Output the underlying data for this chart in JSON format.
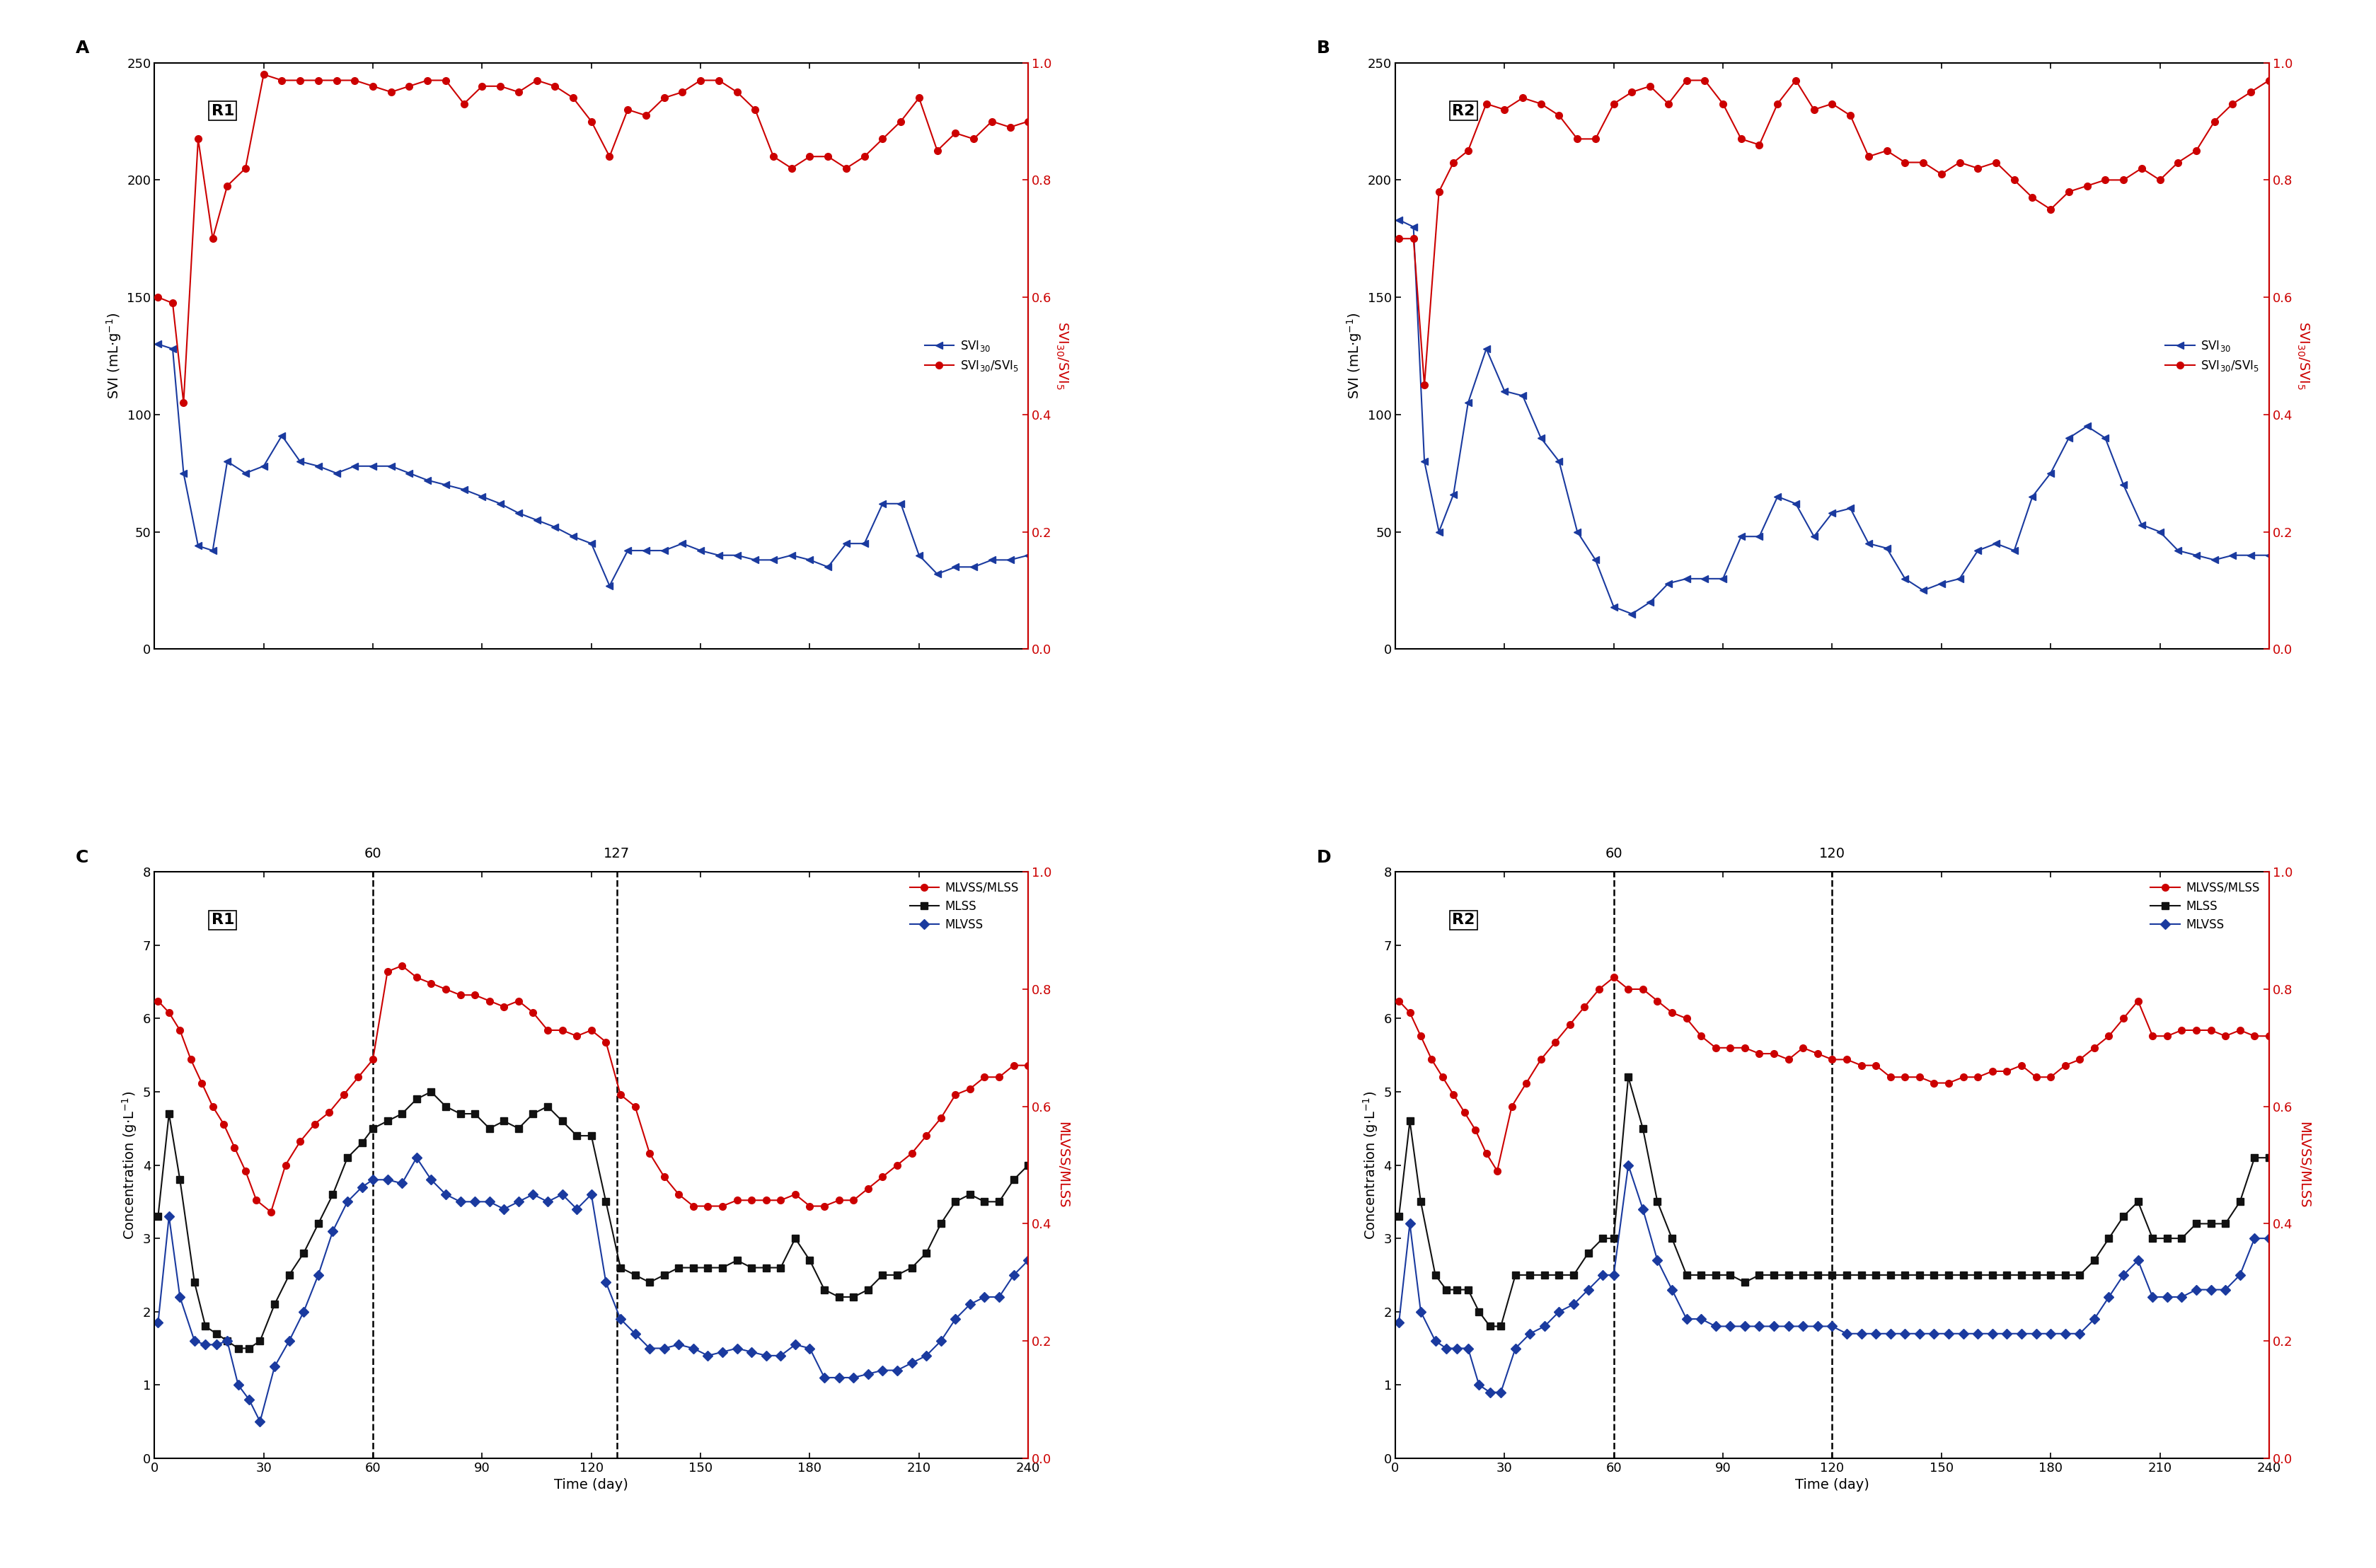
{
  "panel_A": {
    "label": "A",
    "reactor": "R1",
    "svi30_x": [
      1,
      5,
      8,
      12,
      16,
      20,
      25,
      30,
      35,
      40,
      45,
      50,
      55,
      60,
      65,
      70,
      75,
      80,
      85,
      90,
      95,
      100,
      105,
      110,
      115,
      120,
      125,
      130,
      135,
      140,
      145,
      150,
      155,
      160,
      165,
      170,
      175,
      180,
      185,
      190,
      195,
      200,
      205,
      210,
      215,
      220,
      225,
      230,
      235,
      240
    ],
    "svi30_y": [
      130,
      128,
      75,
      44,
      42,
      80,
      75,
      78,
      91,
      80,
      78,
      75,
      78,
      78,
      78,
      75,
      72,
      70,
      68,
      65,
      62,
      58,
      55,
      52,
      48,
      45,
      27,
      42,
      42,
      42,
      45,
      42,
      40,
      40,
      38,
      38,
      40,
      38,
      35,
      45,
      45,
      62,
      62,
      40,
      32,
      35,
      35,
      38,
      38,
      40
    ],
    "ratio_x": [
      1,
      5,
      8,
      12,
      16,
      20,
      25,
      30,
      35,
      40,
      45,
      50,
      55,
      60,
      65,
      70,
      75,
      80,
      85,
      90,
      95,
      100,
      105,
      110,
      115,
      120,
      125,
      130,
      135,
      140,
      145,
      150,
      155,
      160,
      165,
      170,
      175,
      180,
      185,
      190,
      195,
      200,
      205,
      210,
      215,
      220,
      225,
      230,
      235,
      240
    ],
    "ratio_y": [
      0.6,
      0.59,
      0.42,
      0.87,
      0.7,
      0.79,
      0.82,
      0.98,
      0.97,
      0.97,
      0.97,
      0.97,
      0.97,
      0.96,
      0.95,
      0.96,
      0.97,
      0.97,
      0.93,
      0.96,
      0.96,
      0.95,
      0.97,
      0.96,
      0.94,
      0.9,
      0.84,
      0.92,
      0.91,
      0.94,
      0.95,
      0.97,
      0.97,
      0.95,
      0.92,
      0.84,
      0.82,
      0.84,
      0.84,
      0.82,
      0.84,
      0.87,
      0.9,
      0.94,
      0.85,
      0.88,
      0.87,
      0.9,
      0.89,
      0.9
    ]
  },
  "panel_B": {
    "label": "B",
    "reactor": "R2",
    "svi30_x": [
      1,
      5,
      8,
      12,
      16,
      20,
      25,
      30,
      35,
      40,
      45,
      50,
      55,
      60,
      65,
      70,
      75,
      80,
      85,
      90,
      95,
      100,
      105,
      110,
      115,
      120,
      125,
      130,
      135,
      140,
      145,
      150,
      155,
      160,
      165,
      170,
      175,
      180,
      185,
      190,
      195,
      200,
      205,
      210,
      215,
      220,
      225,
      230,
      235,
      240
    ],
    "svi30_y": [
      183,
      180,
      80,
      50,
      66,
      105,
      128,
      110,
      108,
      90,
      80,
      50,
      38,
      18,
      15,
      20,
      28,
      30,
      30,
      30,
      48,
      48,
      65,
      62,
      48,
      58,
      60,
      45,
      43,
      30,
      25,
      28,
      30,
      42,
      45,
      42,
      65,
      75,
      90,
      95,
      90,
      70,
      53,
      50,
      42,
      40,
      38,
      40,
      40,
      40
    ],
    "ratio_x": [
      1,
      5,
      8,
      12,
      16,
      20,
      25,
      30,
      35,
      40,
      45,
      50,
      55,
      60,
      65,
      70,
      75,
      80,
      85,
      90,
      95,
      100,
      105,
      110,
      115,
      120,
      125,
      130,
      135,
      140,
      145,
      150,
      155,
      160,
      165,
      170,
      175,
      180,
      185,
      190,
      195,
      200,
      205,
      210,
      215,
      220,
      225,
      230,
      235,
      240
    ],
    "ratio_y": [
      0.7,
      0.7,
      0.45,
      0.78,
      0.83,
      0.85,
      0.93,
      0.92,
      0.94,
      0.93,
      0.91,
      0.87,
      0.87,
      0.93,
      0.95,
      0.96,
      0.93,
      0.97,
      0.97,
      0.93,
      0.87,
      0.86,
      0.93,
      0.97,
      0.92,
      0.93,
      0.91,
      0.84,
      0.85,
      0.83,
      0.83,
      0.81,
      0.83,
      0.82,
      0.83,
      0.8,
      0.77,
      0.75,
      0.78,
      0.79,
      0.8,
      0.8,
      0.82,
      0.8,
      0.83,
      0.85,
      0.9,
      0.93,
      0.95,
      0.97
    ]
  },
  "panel_C": {
    "label": "C",
    "reactor": "R1",
    "mlvss_mlss_x": [
      1,
      4,
      7,
      10,
      13,
      16,
      19,
      22,
      25,
      28,
      32,
      36,
      40,
      44,
      48,
      52,
      56,
      60,
      64,
      68,
      72,
      76,
      80,
      84,
      88,
      92,
      96,
      100,
      104,
      108,
      112,
      116,
      120,
      124,
      128,
      132,
      136,
      140,
      144,
      148,
      152,
      156,
      160,
      164,
      168,
      172,
      176,
      180,
      184,
      188,
      192,
      196,
      200,
      204,
      208,
      212,
      216,
      220,
      224,
      228,
      232,
      236,
      240
    ],
    "mlvss_mlss_y": [
      0.78,
      0.76,
      0.73,
      0.68,
      0.64,
      0.6,
      0.57,
      0.53,
      0.49,
      0.44,
      0.42,
      0.5,
      0.54,
      0.57,
      0.59,
      0.62,
      0.65,
      0.68,
      0.83,
      0.84,
      0.82,
      0.81,
      0.8,
      0.79,
      0.79,
      0.78,
      0.77,
      0.78,
      0.76,
      0.73,
      0.73,
      0.72,
      0.73,
      0.71,
      0.62,
      0.6,
      0.52,
      0.48,
      0.45,
      0.43,
      0.43,
      0.43,
      0.44,
      0.44,
      0.44,
      0.44,
      0.45,
      0.43,
      0.43,
      0.44,
      0.44,
      0.46,
      0.48,
      0.5,
      0.52,
      0.55,
      0.58,
      0.62,
      0.63,
      0.65,
      0.65,
      0.67,
      0.67
    ],
    "mlss_x": [
      1,
      4,
      7,
      11,
      14,
      17,
      20,
      23,
      26,
      29,
      33,
      37,
      41,
      45,
      49,
      53,
      57,
      60,
      64,
      68,
      72,
      76,
      80,
      84,
      88,
      92,
      96,
      100,
      104,
      108,
      112,
      116,
      120,
      124,
      128,
      132,
      136,
      140,
      144,
      148,
      152,
      156,
      160,
      164,
      168,
      172,
      176,
      180,
      184,
      188,
      192,
      196,
      200,
      204,
      208,
      212,
      216,
      220,
      224,
      228,
      232,
      236,
      240
    ],
    "mlss_y": [
      3.3,
      4.7,
      3.8,
      2.4,
      1.8,
      1.7,
      1.6,
      1.5,
      1.5,
      1.6,
      2.1,
      2.5,
      2.8,
      3.2,
      3.6,
      4.1,
      4.3,
      4.5,
      4.6,
      4.7,
      4.9,
      5.0,
      4.8,
      4.7,
      4.7,
      4.5,
      4.6,
      4.5,
      4.7,
      4.8,
      4.6,
      4.4,
      4.4,
      3.5,
      2.6,
      2.5,
      2.4,
      2.5,
      2.6,
      2.6,
      2.6,
      2.6,
      2.7,
      2.6,
      2.6,
      2.6,
      3.0,
      2.7,
      2.3,
      2.2,
      2.2,
      2.3,
      2.5,
      2.5,
      2.6,
      2.8,
      3.2,
      3.5,
      3.6,
      3.5,
      3.5,
      3.8,
      4.0
    ],
    "mlvss_x": [
      1,
      4,
      7,
      11,
      14,
      17,
      20,
      23,
      26,
      29,
      33,
      37,
      41,
      45,
      49,
      53,
      57,
      60,
      64,
      68,
      72,
      76,
      80,
      84,
      88,
      92,
      96,
      100,
      104,
      108,
      112,
      116,
      120,
      124,
      128,
      132,
      136,
      140,
      144,
      148,
      152,
      156,
      160,
      164,
      168,
      172,
      176,
      180,
      184,
      188,
      192,
      196,
      200,
      204,
      208,
      212,
      216,
      220,
      224,
      228,
      232,
      236,
      240
    ],
    "mlvss_y": [
      1.85,
      3.3,
      2.2,
      1.6,
      1.55,
      1.55,
      1.6,
      1.0,
      0.8,
      0.5,
      1.25,
      1.6,
      2.0,
      2.5,
      3.1,
      3.5,
      3.7,
      3.8,
      3.8,
      3.75,
      4.1,
      3.8,
      3.6,
      3.5,
      3.5,
      3.5,
      3.4,
      3.5,
      3.6,
      3.5,
      3.6,
      3.4,
      3.6,
      2.4,
      1.9,
      1.7,
      1.5,
      1.5,
      1.55,
      1.5,
      1.4,
      1.45,
      1.5,
      1.45,
      1.4,
      1.4,
      1.55,
      1.5,
      1.1,
      1.1,
      1.1,
      1.15,
      1.2,
      1.2,
      1.3,
      1.4,
      1.6,
      1.9,
      2.1,
      2.2,
      2.2,
      2.5,
      2.7
    ],
    "vline1": 60,
    "vline2": 127,
    "vline1_label": "60",
    "vline2_label": "127"
  },
  "panel_D": {
    "label": "D",
    "reactor": "R2",
    "mlvss_mlss_x": [
      1,
      4,
      7,
      10,
      13,
      16,
      19,
      22,
      25,
      28,
      32,
      36,
      40,
      44,
      48,
      52,
      56,
      60,
      64,
      68,
      72,
      76,
      80,
      84,
      88,
      92,
      96,
      100,
      104,
      108,
      112,
      116,
      120,
      124,
      128,
      132,
      136,
      140,
      144,
      148,
      152,
      156,
      160,
      164,
      168,
      172,
      176,
      180,
      184,
      188,
      192,
      196,
      200,
      204,
      208,
      212,
      216,
      220,
      224,
      228,
      232,
      236,
      240
    ],
    "mlvss_mlss_y": [
      0.78,
      0.76,
      0.72,
      0.68,
      0.65,
      0.62,
      0.59,
      0.56,
      0.52,
      0.49,
      0.6,
      0.64,
      0.68,
      0.71,
      0.74,
      0.77,
      0.8,
      0.82,
      0.8,
      0.8,
      0.78,
      0.76,
      0.75,
      0.72,
      0.7,
      0.7,
      0.7,
      0.69,
      0.69,
      0.68,
      0.7,
      0.69,
      0.68,
      0.68,
      0.67,
      0.67,
      0.65,
      0.65,
      0.65,
      0.64,
      0.64,
      0.65,
      0.65,
      0.66,
      0.66,
      0.67,
      0.65,
      0.65,
      0.67,
      0.68,
      0.7,
      0.72,
      0.75,
      0.78,
      0.72,
      0.72,
      0.73,
      0.73,
      0.73,
      0.72,
      0.73,
      0.72,
      0.72
    ],
    "mlss_x": [
      1,
      4,
      7,
      11,
      14,
      17,
      20,
      23,
      26,
      29,
      33,
      37,
      41,
      45,
      49,
      53,
      57,
      60,
      64,
      68,
      72,
      76,
      80,
      84,
      88,
      92,
      96,
      100,
      104,
      108,
      112,
      116,
      120,
      124,
      128,
      132,
      136,
      140,
      144,
      148,
      152,
      156,
      160,
      164,
      168,
      172,
      176,
      180,
      184,
      188,
      192,
      196,
      200,
      204,
      208,
      212,
      216,
      220,
      224,
      228,
      232,
      236,
      240
    ],
    "mlss_y": [
      3.3,
      4.6,
      3.5,
      2.5,
      2.3,
      2.3,
      2.3,
      2.0,
      1.8,
      1.8,
      2.5,
      2.5,
      2.5,
      2.5,
      2.5,
      2.8,
      3.0,
      3.0,
      5.2,
      4.5,
      3.5,
      3.0,
      2.5,
      2.5,
      2.5,
      2.5,
      2.4,
      2.5,
      2.5,
      2.5,
      2.5,
      2.5,
      2.5,
      2.5,
      2.5,
      2.5,
      2.5,
      2.5,
      2.5,
      2.5,
      2.5,
      2.5,
      2.5,
      2.5,
      2.5,
      2.5,
      2.5,
      2.5,
      2.5,
      2.5,
      2.7,
      3.0,
      3.3,
      3.5,
      3.0,
      3.0,
      3.0,
      3.2,
      3.2,
      3.2,
      3.5,
      4.1,
      4.1
    ],
    "mlvss_x": [
      1,
      4,
      7,
      11,
      14,
      17,
      20,
      23,
      26,
      29,
      33,
      37,
      41,
      45,
      49,
      53,
      57,
      60,
      64,
      68,
      72,
      76,
      80,
      84,
      88,
      92,
      96,
      100,
      104,
      108,
      112,
      116,
      120,
      124,
      128,
      132,
      136,
      140,
      144,
      148,
      152,
      156,
      160,
      164,
      168,
      172,
      176,
      180,
      184,
      188,
      192,
      196,
      200,
      204,
      208,
      212,
      216,
      220,
      224,
      228,
      232,
      236,
      240
    ],
    "mlvss_y": [
      1.85,
      3.2,
      2.0,
      1.6,
      1.5,
      1.5,
      1.5,
      1.0,
      0.9,
      0.9,
      1.5,
      1.7,
      1.8,
      2.0,
      2.1,
      2.3,
      2.5,
      2.5,
      4.0,
      3.4,
      2.7,
      2.3,
      1.9,
      1.9,
      1.8,
      1.8,
      1.8,
      1.8,
      1.8,
      1.8,
      1.8,
      1.8,
      1.8,
      1.7,
      1.7,
      1.7,
      1.7,
      1.7,
      1.7,
      1.7,
      1.7,
      1.7,
      1.7,
      1.7,
      1.7,
      1.7,
      1.7,
      1.7,
      1.7,
      1.7,
      1.9,
      2.2,
      2.5,
      2.7,
      2.2,
      2.2,
      2.2,
      2.3,
      2.3,
      2.3,
      2.5,
      3.0,
      3.0
    ],
    "vline1": 60,
    "vline2": 120,
    "vline1_label": "60",
    "vline2_label": "120"
  },
  "colors": {
    "blue": "#1a3a9f",
    "red": "#cc0000",
    "black": "#111111"
  },
  "svi_ylim": [
    0,
    250
  ],
  "svi_yticks": [
    0,
    50,
    100,
    150,
    200,
    250
  ],
  "ratio_ylim": [
    0.0,
    1.0
  ],
  "ratio_yticks": [
    0.0,
    0.2,
    0.4,
    0.6,
    0.8,
    1.0
  ],
  "conc_ylim": [
    0,
    8
  ],
  "conc_yticks": [
    0,
    1,
    2,
    3,
    4,
    5,
    6,
    7,
    8
  ],
  "mlvss_mlss_ylim": [
    0.0,
    1.0
  ],
  "mlvss_mlss_yticks": [
    0.0,
    0.2,
    0.4,
    0.6,
    0.8,
    1.0
  ],
  "xlim": [
    0,
    240
  ],
  "xticks": [
    0,
    30,
    60,
    90,
    120,
    150,
    180,
    210,
    240
  ],
  "tick_fontsize": 13,
  "label_fontsize": 14,
  "legend_fontsize": 12,
  "panel_label_fontsize": 18,
  "reactor_label_fontsize": 16,
  "vline_label_fontsize": 14
}
